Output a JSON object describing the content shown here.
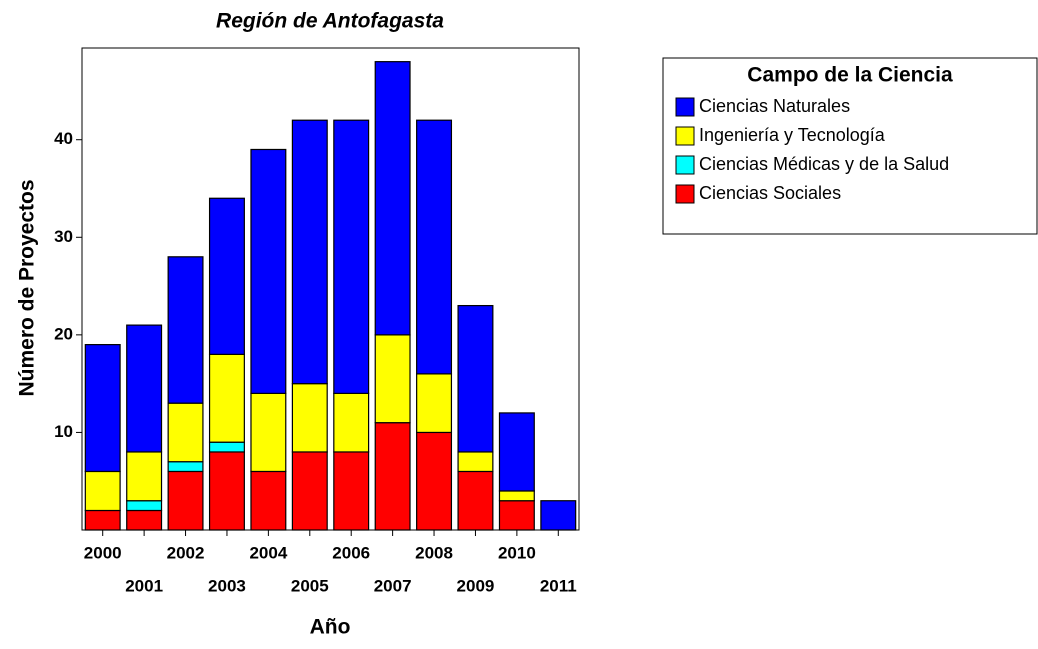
{
  "chart_data": {
    "type": "stacked-bar",
    "title": "Región de Antofagasta",
    "x_label": "Año",
    "y_label": "Número de Proyectos",
    "categories": [
      "2000",
      "2001",
      "2002",
      "2003",
      "2004",
      "2005",
      "2006",
      "2007",
      "2008",
      "2009",
      "2010",
      "2011"
    ],
    "series": [
      {
        "name": "Ciencias Sociales",
        "color": "#ff0000",
        "values": [
          2,
          2,
          6,
          8,
          6,
          8,
          8,
          11,
          10,
          6,
          3,
          0
        ]
      },
      {
        "name": "Ciencias Médicas y de la Salud",
        "color": "#00ffff",
        "values": [
          0,
          1,
          1,
          1,
          0,
          0,
          0,
          0,
          0,
          0,
          0,
          0
        ]
      },
      {
        "name": "Ingeniería y Tecnología",
        "color": "#ffff00",
        "values": [
          4,
          5,
          6,
          9,
          8,
          7,
          6,
          9,
          6,
          2,
          1,
          0
        ]
      },
      {
        "name": "Ciencias Naturales",
        "color": "#0000ff",
        "values": [
          13,
          13,
          15,
          16,
          25,
          27,
          28,
          28,
          26,
          15,
          8,
          3
        ]
      }
    ],
    "legend_title": "Campo de la Ciencia",
    "ylim": [
      0,
      49.4
    ],
    "yticks": [
      10,
      20,
      30,
      40
    ]
  }
}
